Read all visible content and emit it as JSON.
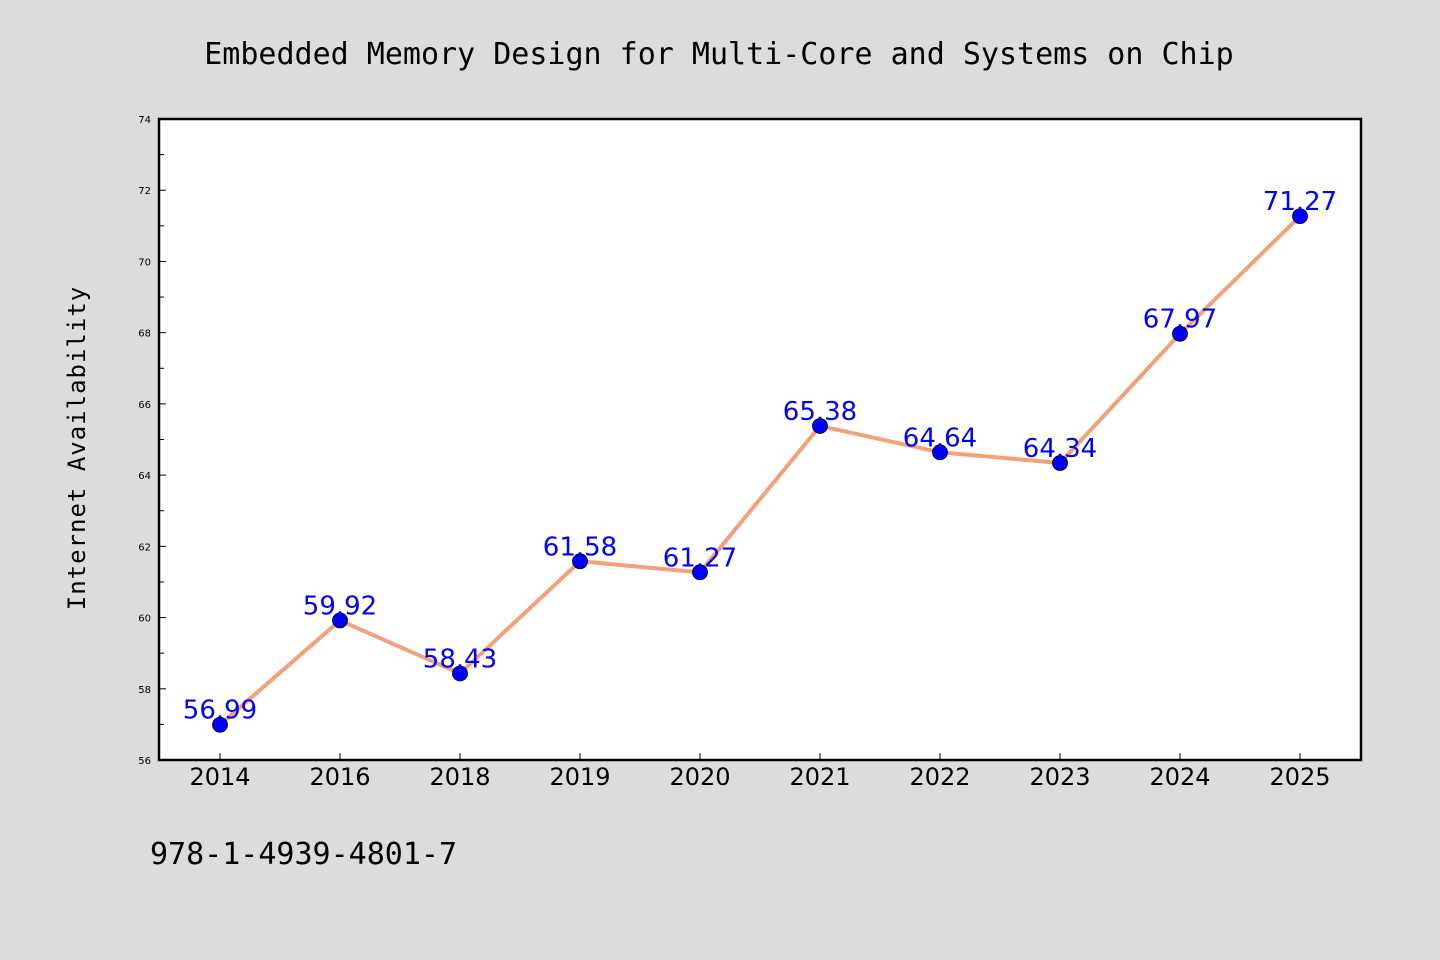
{
  "chart_data": {
    "type": "line",
    "title": "Embedded Memory Design for Multi-Core and Systems on Chip",
    "xlabel": "",
    "ylabel": "Internet Availability",
    "categories": [
      "2014",
      "2016",
      "2018",
      "2019",
      "2020",
      "2021",
      "2022",
      "2023",
      "2024",
      "2025"
    ],
    "series": [
      {
        "values": [
          56.99,
          59.92,
          58.43,
          61.58,
          61.27,
          65.38,
          64.64,
          64.34,
          67.97,
          71.27
        ],
        "labels": [
          "56.99",
          "59.92",
          "58.43",
          "61.58",
          "61.27",
          "65.38",
          "64.64",
          "64.34",
          "67.97",
          "71.27"
        ],
        "line_color": "#f4a07a",
        "marker_color": "#0000ff"
      }
    ],
    "ylim": [
      56,
      74
    ],
    "yticks": [
      "56",
      "58",
      "60",
      "62",
      "64",
      "66",
      "68",
      "70",
      "72",
      "74"
    ],
    "grid": false,
    "legend": "none"
  },
  "footer": {
    "isbn": "978-1-4939-4801-7"
  }
}
